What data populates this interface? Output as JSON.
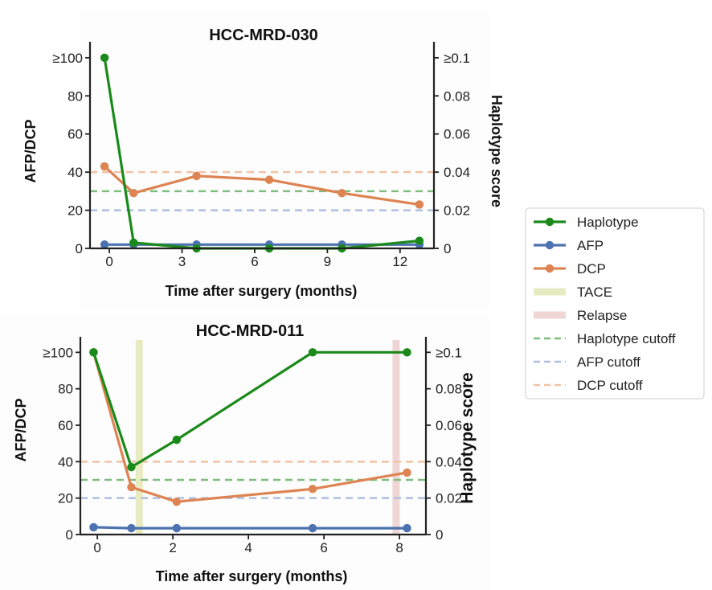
{
  "chart_data": [
    {
      "type": "line",
      "title": "HCC-MRD-030",
      "xlabel": "Time after surgery (months)",
      "ylabel": "AFP/DCP",
      "y2label": "Haplotype score",
      "xlim": [
        -0.8,
        13.4
      ],
      "ylim": [
        0,
        105
      ],
      "y2lim": [
        0,
        0.105
      ],
      "xticks": [
        0,
        3,
        6,
        9,
        12
      ],
      "xtick_labels": [
        "0",
        "3",
        "6",
        "9",
        "12"
      ],
      "yticks": [
        0,
        20,
        40,
        60,
        80,
        100
      ],
      "ytick_labels": [
        "0",
        "20",
        "40",
        "60",
        "80",
        "≥100"
      ],
      "y2ticks": [
        0,
        0.02,
        0.04,
        0.06,
        0.08,
        0.1
      ],
      "y2tick_labels": [
        "0",
        "0.02",
        "0.04",
        "0.06",
        "0.08",
        "≥0.1"
      ],
      "series": [
        {
          "name": "DCP",
          "axis": "left",
          "color": "#DD8452",
          "x": [
            -0.2,
            1.0,
            3.6,
            6.6,
            9.6,
            12.8
          ],
          "y": [
            43,
            29,
            38,
            36,
            29,
            23
          ]
        },
        {
          "name": "AFP",
          "axis": "left",
          "color": "#4C72B0",
          "x": [
            -0.2,
            1.0,
            3.6,
            6.6,
            9.6,
            12.8
          ],
          "y": [
            2,
            2,
            2,
            2,
            2,
            2
          ]
        },
        {
          "name": "Haplotype",
          "axis": "right",
          "color": "#1A8A1A",
          "x": [
            -0.2,
            1.0,
            3.6,
            6.6,
            9.6,
            12.8
          ],
          "y": [
            0.1,
            0.003,
            0,
            0,
            0,
            0.004
          ]
        }
      ],
      "cutoffs": {
        "haplotype": 0.03,
        "afp": 20,
        "dcp": 40
      },
      "events": []
    },
    {
      "type": "line",
      "title": "HCC-MRD-011",
      "xlabel": "Time after surgery (months)",
      "ylabel": "AFP/DCP",
      "y2label": "Haplotype score",
      "xlim": [
        -0.45,
        8.7
      ],
      "ylim": [
        0,
        105
      ],
      "y2lim": [
        0,
        0.105
      ],
      "xticks": [
        0,
        2,
        4,
        6,
        8
      ],
      "xtick_labels": [
        "0",
        "2",
        "4",
        "6",
        "8"
      ],
      "yticks": [
        0,
        20,
        40,
        60,
        80,
        100
      ],
      "ytick_labels": [
        "0",
        "20",
        "40",
        "60",
        "80",
        "≥100"
      ],
      "y2ticks": [
        0,
        0.02,
        0.04,
        0.06,
        0.08,
        0.1
      ],
      "y2tick_labels": [
        "0",
        "0.02",
        "0.04",
        "0.06",
        "0.08",
        "≥0.1"
      ],
      "series": [
        {
          "name": "DCP",
          "axis": "left",
          "color": "#DD8452",
          "x": [
            -0.1,
            0.9,
            2.1,
            5.7,
            8.2
          ],
          "y": [
            100,
            26,
            18,
            25,
            34
          ]
        },
        {
          "name": "AFP",
          "axis": "left",
          "color": "#4C72B0",
          "x": [
            -0.1,
            0.9,
            2.1,
            5.7,
            8.2
          ],
          "y": [
            4,
            3.5,
            3.5,
            3.5,
            3.5
          ]
        },
        {
          "name": "Haplotype",
          "axis": "right",
          "color": "#1A8A1A",
          "x": [
            -0.1,
            0.9,
            2.1,
            5.7,
            8.2
          ],
          "y": [
            0.1,
            0.037,
            0.052,
            0.1,
            0.1
          ]
        }
      ],
      "cutoffs": {
        "haplotype": 0.03,
        "afp": 20,
        "dcp": 40
      },
      "events": [
        {
          "name": "TACE",
          "x": 1.1,
          "color": "#E8EBC2"
        },
        {
          "name": "Relapse",
          "x": 7.9,
          "color": "#EFD6D4"
        }
      ]
    }
  ],
  "legend": {
    "placement": "right",
    "items": [
      {
        "label": "Haplotype",
        "style": "line-marker",
        "color": "#1A8A1A"
      },
      {
        "label": "AFP",
        "style": "line-marker",
        "color": "#4C72B0"
      },
      {
        "label": "DCP",
        "style": "line-marker",
        "color": "#DD8452"
      },
      {
        "label": "TACE",
        "style": "band",
        "color": "#E8EBC2"
      },
      {
        "label": "Relapse",
        "style": "band",
        "color": "#EFD6D4"
      },
      {
        "label": "Haplotype cutoff",
        "style": "dashed",
        "color": "#7FBE7F"
      },
      {
        "label": "AFP cutoff",
        "style": "dashed",
        "color": "#AEBFE0"
      },
      {
        "label": "DCP cutoff",
        "style": "dashed",
        "color": "#F0C2A4"
      }
    ]
  }
}
